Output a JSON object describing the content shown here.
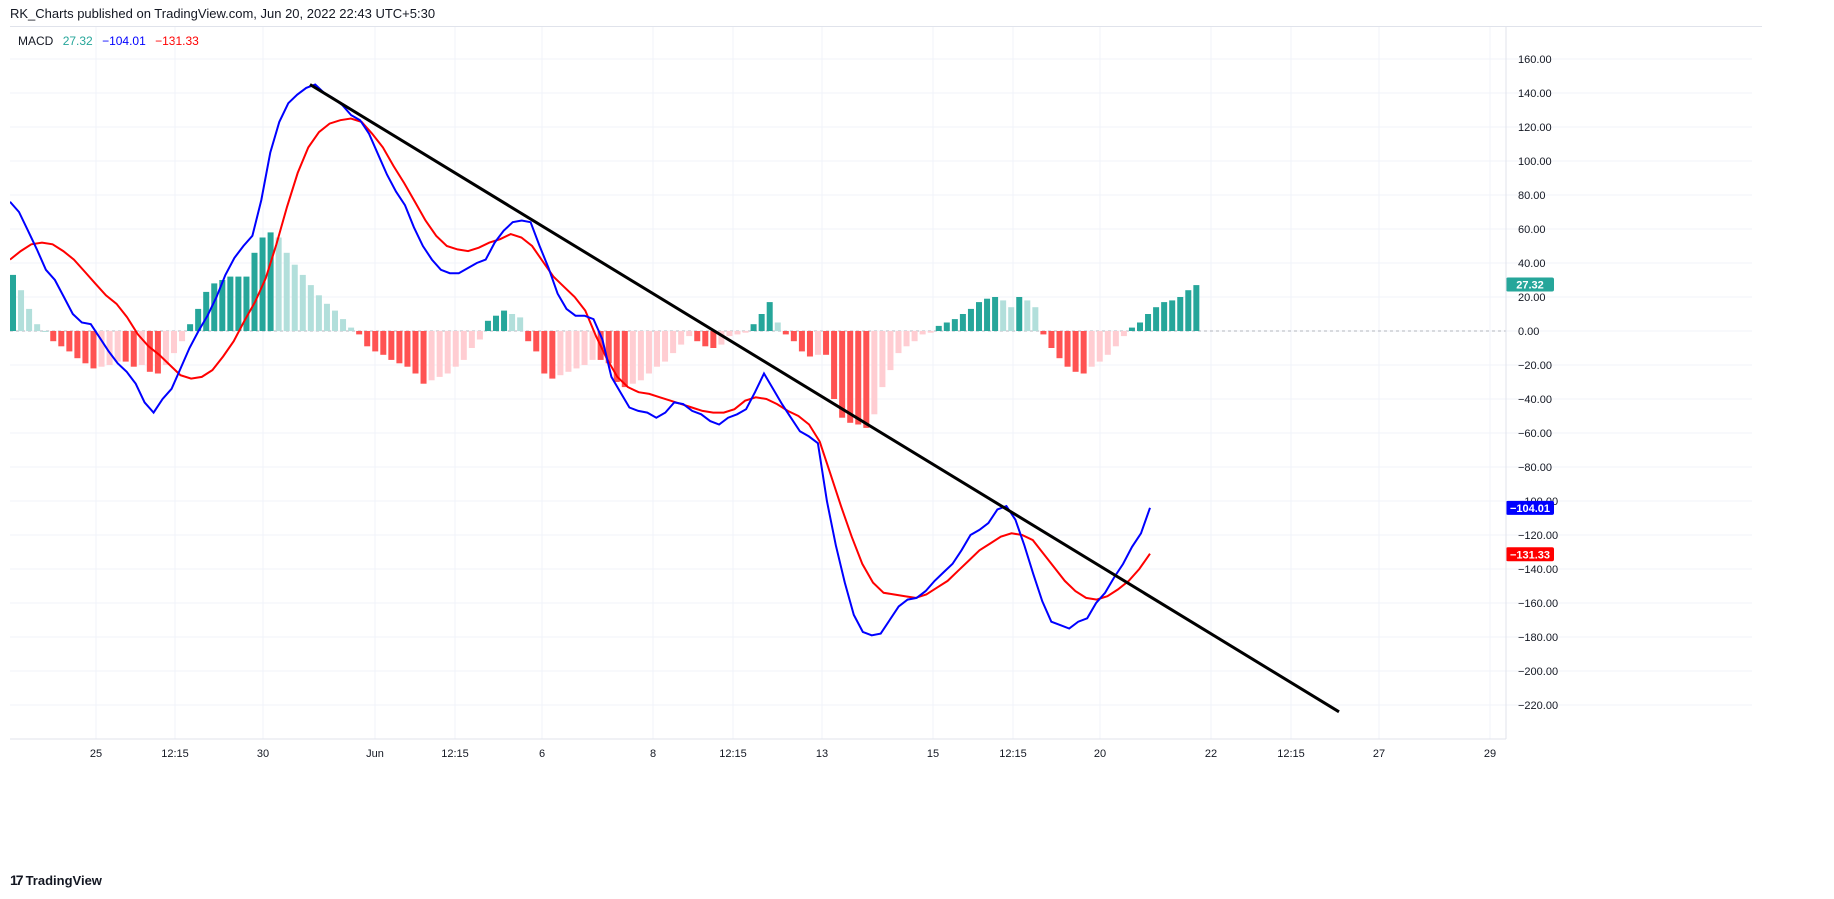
{
  "header": {
    "publish_line": "RK_Charts published on TradingView.com, Jun 20, 2022 22:43 UTC+5:30"
  },
  "legend": {
    "indicator": "MACD",
    "hist_value": "27.32",
    "macd_value": "−104.01",
    "signal_value": "−131.33"
  },
  "footer": {
    "logo_glyph": "17",
    "brand": "TradingView"
  },
  "colors": {
    "macd_line": "#0000ff",
    "signal_line": "#ff0000",
    "hist_up_strong": "#26a69a",
    "hist_up_weak": "#b2dfdb",
    "hist_down_strong": "#ff5252",
    "hist_down_weak": "#ffcdd2",
    "trendline": "#000000",
    "grid": "#f0f3fa",
    "axis_text": "#131722"
  },
  "chart_data": {
    "type": "line",
    "title": "MACD",
    "ylim": [
      -225,
      170
    ],
    "y_ticks": [
      160,
      140,
      120,
      100,
      80,
      60,
      40,
      20,
      0,
      -20,
      -40,
      -60,
      -80,
      -100,
      -120,
      -140,
      -160,
      -180,
      -200,
      -220
    ],
    "x_tick_labels": [
      "25",
      "12:15",
      "30",
      "Jun",
      "12:15",
      "6",
      "8",
      "12:15",
      "13",
      "15",
      "12:15",
      "20",
      "22",
      "12:15",
      "27",
      "29"
    ],
    "grid": true,
    "series": [
      {
        "key": "macd",
        "values": [
          76,
          70,
          59,
          48,
          36,
          30,
          20,
          10,
          5,
          4,
          -4,
          -12,
          -19,
          -24,
          -31,
          -42,
          -48,
          -40,
          -34,
          -22,
          -10,
          0,
          9,
          20,
          33,
          43,
          50,
          56,
          77,
          105,
          123,
          134,
          139,
          143,
          145,
          140,
          137,
          133,
          127,
          124,
          116,
          104,
          92,
          82,
          74,
          61,
          50,
          42,
          36,
          34,
          34,
          37,
          40,
          42,
          52,
          59,
          64,
          65,
          64,
          50,
          37,
          22,
          13,
          9,
          9,
          7,
          -5,
          -27,
          -36,
          -45,
          -47,
          -48,
          -51,
          -48,
          -42,
          -43,
          -47,
          -49,
          -53,
          -55,
          -51,
          -49,
          -46,
          -36,
          -25,
          -34,
          -43,
          -51,
          -59,
          -62,
          -66,
          -100,
          -126,
          -148,
          -167,
          -177,
          -179,
          -178,
          -170,
          -162,
          -158,
          -157,
          -153,
          -147,
          -142,
          -137,
          -129,
          -120,
          -117,
          -113,
          -105,
          -103,
          -111,
          -126,
          -143,
          -159,
          -171,
          -173,
          -175,
          -171,
          -169,
          -160,
          -154,
          -145,
          -137,
          -127,
          -119,
          -104
        ],
        "name": ""
      },
      {
        "key": "signal",
        "values": [
          42,
          47,
          51,
          52,
          51,
          47,
          42,
          35,
          28,
          21,
          16,
          8,
          -2,
          -9,
          -14,
          -20,
          -26,
          -28,
          -27,
          -23,
          -15,
          -6,
          6,
          17,
          31,
          51,
          73,
          93,
          108,
          117,
          122,
          124,
          125,
          123,
          116,
          108,
          97,
          87,
          76,
          65,
          56,
          50,
          48,
          47,
          49,
          52,
          54,
          57,
          55,
          50,
          41,
          32,
          26,
          20,
          12,
          -3,
          -16,
          -27,
          -33,
          -36,
          -37,
          -39,
          -41,
          -43,
          -45,
          -47,
          -48,
          -48,
          -46,
          -41,
          -39,
          -40,
          -43,
          -47,
          -50,
          -55,
          -65,
          -84,
          -103,
          -121,
          -137,
          -148,
          -154,
          -155,
          -156,
          -157,
          -155,
          -151,
          -147,
          -141,
          -135,
          -129,
          -125,
          -121,
          -119,
          -120,
          -123,
          -131,
          -139,
          -147,
          -153,
          -157,
          -158,
          -156,
          -152,
          -147,
          -140,
          -131
        ],
        "name": ""
      }
    ],
    "histogram": [
      33,
      24,
      13,
      4,
      0,
      -6,
      -9,
      -12,
      -16,
      -19,
      -22,
      -21,
      -20,
      -18,
      -18,
      -21,
      -20,
      -24,
      -25,
      -20,
      -13,
      -6,
      4,
      13,
      23,
      28,
      30,
      32,
      32,
      32,
      46,
      55,
      58,
      55,
      46,
      39,
      33,
      27,
      21,
      16,
      12,
      7,
      2,
      -2,
      -9,
      -12,
      -14,
      -17,
      -19,
      -21,
      -25,
      -31,
      -29,
      -27,
      -25,
      -21,
      -17,
      -10,
      -5,
      6,
      9,
      12,
      10,
      8,
      -6,
      -12,
      -25,
      -28,
      -26,
      -24,
      -22,
      -20,
      -17,
      -17,
      -19,
      -30,
      -33,
      -31,
      -29,
      -25,
      -21,
      -18,
      -13,
      -8,
      -3,
      -6,
      -9,
      -10,
      -8,
      -3,
      -2,
      -1,
      4,
      10,
      17,
      5,
      -2,
      -6,
      -12,
      -15,
      -14,
      -14,
      -40,
      -51,
      -54,
      -55,
      -57,
      -49,
      -33,
      -23,
      -13,
      -9,
      -6,
      -2,
      -1,
      3,
      5,
      7,
      10,
      13,
      17,
      19,
      20,
      18,
      14,
      20,
      18,
      14,
      -2,
      -10,
      -16,
      -21,
      -24,
      -25,
      -21,
      -18,
      -14,
      -9,
      -3,
      2,
      5,
      10,
      14,
      17,
      18,
      20,
      24,
      27
    ]
  },
  "trendline": {
    "start_value": 145,
    "end_value": -224
  }
}
